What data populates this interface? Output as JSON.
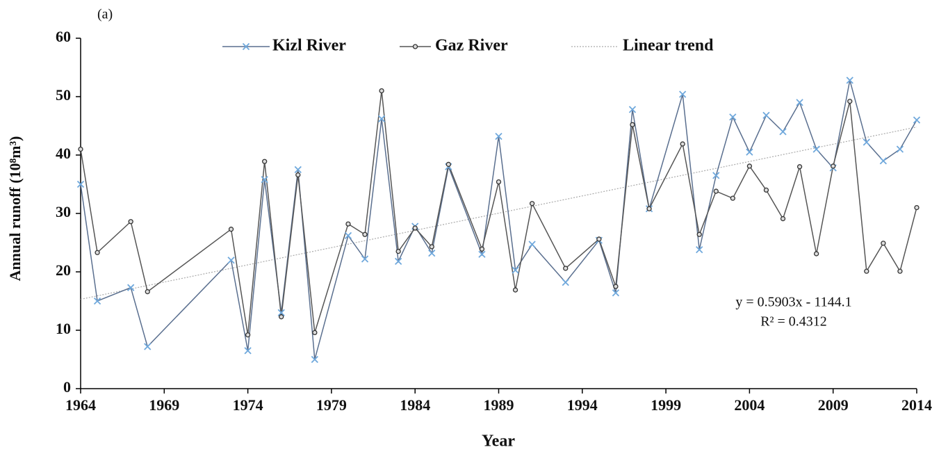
{
  "chart_data": {
    "type": "line",
    "panel_label": "(a)",
    "xlabel": "Year",
    "ylabel": "Annual runoff (10⁸m³)",
    "x": [
      1964,
      1965,
      1967,
      1968,
      1973,
      1974,
      1975,
      1976,
      1977,
      1978,
      1980,
      1981,
      1982,
      1983,
      1984,
      1985,
      1986,
      1988,
      1989,
      1990,
      1991,
      1993,
      1995,
      1996,
      1997,
      1998,
      2000,
      2001,
      2002,
      2003,
      2004,
      2005,
      2006,
      2007,
      2008,
      2009,
      2010,
      2011,
      2012,
      2013,
      2014
    ],
    "series": [
      {
        "name": "Kizl River",
        "color": "#5a6f8f",
        "marker_color": "#6fa8dc",
        "marker": "x",
        "values": [
          35,
          15,
          17.3,
          7.2,
          22,
          6.5,
          35.8,
          13,
          37.5,
          5,
          26.2,
          22.2,
          46.2,
          21.8,
          27.8,
          23.2,
          38,
          23,
          43.2,
          20.3,
          24.7,
          18.2,
          25.4,
          16.4,
          47.8,
          30.8,
          50.4,
          23.8,
          36.5,
          46.5,
          40.5,
          46.8,
          44,
          49,
          41,
          37.8,
          52.8,
          42.2,
          39,
          41,
          46
        ]
      },
      {
        "name": "Gaz River",
        "color": "#555555",
        "marker_color": "#333333",
        "marker": "circle",
        "values": [
          41,
          23.3,
          28.6,
          16.6,
          27.3,
          9.2,
          38.9,
          12.3,
          36.6,
          9.6,
          28.2,
          26.4,
          51,
          23.5,
          27.5,
          24.3,
          38.4,
          23.9,
          35.4,
          16.9,
          31.7,
          20.6,
          25.6,
          17.5,
          45.2,
          30.8,
          41.9,
          26.4,
          33.8,
          32.6,
          38.1,
          34,
          29.1,
          38,
          23.1,
          38.1,
          49.2,
          20.1,
          24.9,
          20.1,
          31
        ]
      }
    ],
    "trend": {
      "name": "Linear trend",
      "color": "#aaaaaa",
      "x": [
        1964,
        2014
      ],
      "values": [
        15.3,
        44.8
      ],
      "equation": "y = 0.5903x - 1144.1",
      "r_squared": "R² = 0.4312"
    },
    "xlim": [
      1964,
      2014
    ],
    "xticks": [
      1964,
      1969,
      1974,
      1979,
      1984,
      1989,
      1994,
      1999,
      2004,
      2009,
      2014
    ],
    "ylim": [
      0,
      60
    ],
    "yticks": [
      0,
      10,
      20,
      30,
      40,
      50,
      60
    ],
    "grid": false,
    "legend": "top"
  }
}
